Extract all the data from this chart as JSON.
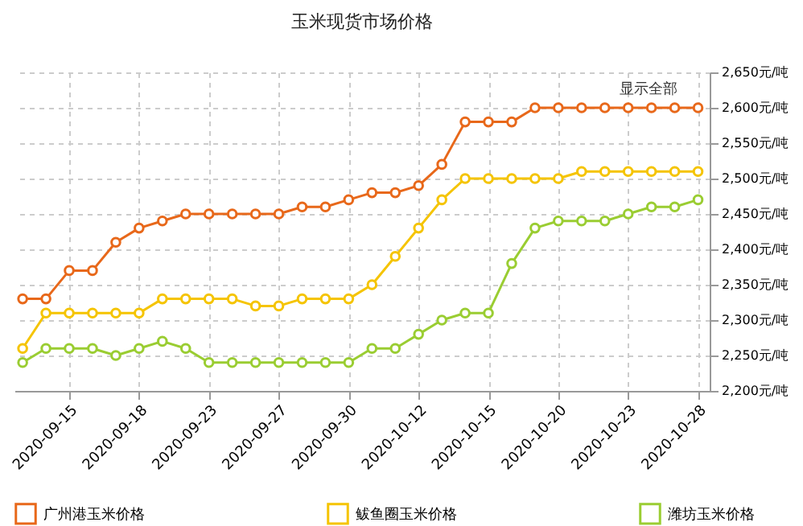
{
  "chart_data": {
    "type": "line",
    "title": "玉米现货市场价格",
    "categories": [
      null,
      null,
      "2020-09-15",
      null,
      null,
      "2020-09-18",
      null,
      null,
      "2020-09-23",
      null,
      null,
      "2020-09-27",
      null,
      null,
      "2020-09-30",
      null,
      null,
      "2020-10-12",
      null,
      null,
      "2020-10-15",
      null,
      null,
      "2020-10-20",
      null,
      null,
      "2020-10-23",
      null,
      null,
      "2020-10-28"
    ],
    "series": [
      {
        "name": "广州港玉米价格",
        "color": "#e8681a",
        "values": [
          2330,
          2330,
          2370,
          2370,
          2410,
          2430,
          2440,
          2450,
          2450,
          2450,
          2450,
          2450,
          2460,
          2460,
          2470,
          2480,
          2480,
          2490,
          2520,
          2580,
          2580,
          2580,
          2600,
          2600,
          2600,
          2600,
          2600,
          2600,
          2600,
          2600
        ]
      },
      {
        "name": "鲅鱼圈玉米价格",
        "color": "#f5c400",
        "values": [
          2260,
          2310,
          2310,
          2310,
          2310,
          2310,
          2330,
          2330,
          2330,
          2330,
          2320,
          2320,
          2330,
          2330,
          2330,
          2350,
          2390,
          2430,
          2470,
          2500,
          2500,
          2500,
          2500,
          2500,
          2510,
          2510,
          2510,
          2510,
          2510,
          2510
        ]
      },
      {
        "name": "潍坊玉米价格",
        "color": "#9acd32",
        "values": [
          2240,
          2260,
          2260,
          2260,
          2250,
          2260,
          2270,
          2260,
          2240,
          2240,
          2240,
          2240,
          2240,
          2240,
          2240,
          2260,
          2260,
          2280,
          2300,
          2310,
          2310,
          2380,
          2430,
          2440,
          2440,
          2440,
          2450,
          2460,
          2460,
          2470
        ]
      }
    ],
    "ylim": [
      2200,
      2650
    ],
    "yticks": [
      {
        "value": 2200,
        "label": "2,200元/吨"
      },
      {
        "value": 2250,
        "label": "2,250元/吨"
      },
      {
        "value": 2300,
        "label": "2,300元/吨"
      },
      {
        "value": 2350,
        "label": "2,350元/吨"
      },
      {
        "value": 2400,
        "label": "2,400元/吨"
      },
      {
        "value": 2450,
        "label": "2,450元/吨"
      },
      {
        "value": 2500,
        "label": "2,500元/吨"
      },
      {
        "value": 2550,
        "label": "2,550元/吨"
      },
      {
        "value": 2600,
        "label": "2,600元/吨"
      },
      {
        "value": 2650,
        "label": "2,650元/吨"
      }
    ],
    "annotations": [
      "显示全部"
    ],
    "grid": true,
    "legend": "bottom",
    "marker": "circle",
    "line_style": "solid"
  }
}
